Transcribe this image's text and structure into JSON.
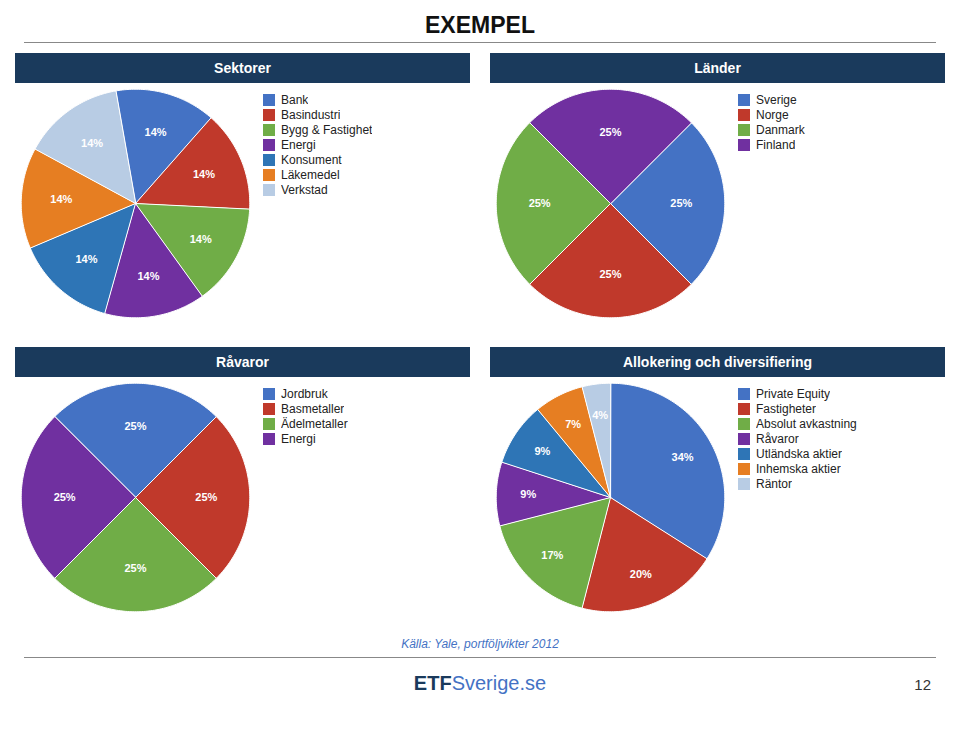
{
  "title": "EXEMPEL",
  "caption": "Källa: Yale, portföljvikter 2012",
  "footer": [
    "ETF",
    "Sverige.se"
  ],
  "page_number": "12",
  "chart_data": [
    {
      "type": "pie",
      "title": "Sektorer",
      "categories": [
        "Bank",
        "Basindustri",
        "Bygg & Fastighet",
        "Energi",
        "Konsument",
        "Läkemedel",
        "Verkstad"
      ],
      "values": [
        14.28,
        14.28,
        14.28,
        14.28,
        14.28,
        14.28,
        14.32
      ],
      "value_labels": [
        "14%",
        "14%",
        "14%",
        "14%",
        "14%",
        "14%",
        "14%"
      ],
      "colors": [
        "#4472c4",
        "#c0392b",
        "#70ad47",
        "#7030a0",
        "#2e75b6",
        "#e67e22",
        "#b8cce4"
      ],
      "data_labels": true,
      "legend": "right"
    },
    {
      "type": "pie",
      "title": "Länder",
      "categories": [
        "Sverige",
        "Norge",
        "Danmark",
        "Finland"
      ],
      "values": [
        25,
        25,
        25,
        25
      ],
      "value_labels": [
        "25%",
        "25%",
        "25%",
        "25%"
      ],
      "colors": [
        "#4472c4",
        "#c0392b",
        "#70ad47",
        "#7030a0"
      ],
      "data_labels": true,
      "legend": "right"
    },
    {
      "type": "pie",
      "title": "Råvaror",
      "categories": [
        "Jordbruk",
        "Basmetaller",
        "Ädelmetaller",
        "Energi"
      ],
      "values": [
        25,
        25,
        25,
        25
      ],
      "value_labels": [
        "25%",
        "25%",
        "25%",
        "25%"
      ],
      "colors": [
        "#4472c4",
        "#c0392b",
        "#70ad47",
        "#7030a0"
      ],
      "data_labels": true,
      "legend": "right"
    },
    {
      "type": "pie",
      "title": "Allokering och diversifiering",
      "categories": [
        "Private Equity",
        "Fastigheter",
        "Absolut avkastning",
        "Råvaror",
        "Utländska aktier",
        "Inhemska aktier",
        "Räntor"
      ],
      "values": [
        34,
        20,
        17,
        9,
        9,
        7,
        4
      ],
      "value_labels": [
        "34%",
        "20%",
        "17%",
        "9%",
        "9%",
        "7%",
        "4%"
      ],
      "colors": [
        "#4472c4",
        "#c0392b",
        "#70ad47",
        "#7030a0",
        "#2e75b6",
        "#e67e22",
        "#b8cce4"
      ],
      "data_labels": true,
      "legend": "right"
    }
  ]
}
